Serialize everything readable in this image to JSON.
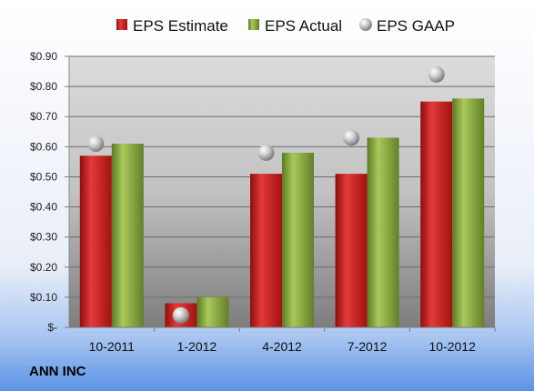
{
  "company": "ANN INC",
  "chart_data": {
    "type": "bar",
    "categories": [
      "10-2011",
      "1-2012",
      "4-2012",
      "7-2012",
      "10-2012"
    ],
    "series": [
      {
        "name": "EPS Estimate",
        "kind": "bar",
        "color": "#cc1f1f",
        "values": [
          0.57,
          0.08,
          0.51,
          0.51,
          0.75
        ]
      },
      {
        "name": "EPS Actual",
        "kind": "bar",
        "color": "#7fa23a",
        "values": [
          0.61,
          0.1,
          0.58,
          0.63,
          0.76
        ]
      },
      {
        "name": "EPS GAAP",
        "kind": "marker",
        "color": "#b0b0b0",
        "values": [
          0.61,
          0.04,
          0.58,
          0.63,
          0.84
        ]
      }
    ],
    "ylim": [
      0,
      0.9
    ],
    "ytick_values": [
      0,
      0.1,
      0.2,
      0.3,
      0.4,
      0.5,
      0.6,
      0.7,
      0.8,
      0.9
    ],
    "ytick_labels": [
      "$-",
      "$0.10",
      "$0.20",
      "$0.30",
      "$0.40",
      "$0.50",
      "$0.60",
      "$0.70",
      "$0.80",
      "$0.90"
    ],
    "grid": true,
    "legend_position": "top"
  }
}
